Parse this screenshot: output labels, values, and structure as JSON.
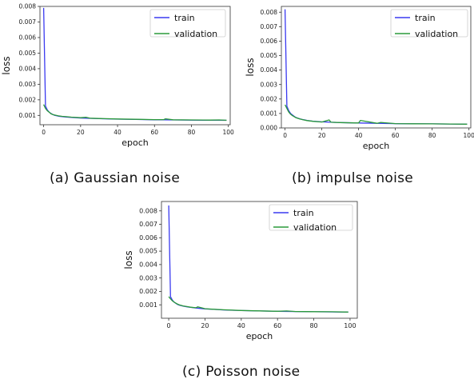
{
  "chart_data": [
    {
      "type": "line",
      "caption": "(a) Gaussian noise",
      "xlabel": "epoch",
      "ylabel": "loss",
      "xlim": [
        -2,
        101
      ],
      "ylim": [
        0.0004,
        0.008
      ],
      "xticks": [
        0,
        20,
        40,
        60,
        80,
        100
      ],
      "yticks": [
        0.001,
        0.002,
        0.003,
        0.004,
        0.005,
        0.006,
        0.007,
        0.008
      ],
      "ytick_labels": [
        "0.001",
        "0.002",
        "0.003",
        "0.004",
        "0.005",
        "0.006",
        "0.007",
        "0.008"
      ],
      "legend": "top-right",
      "grid": false,
      "series": [
        {
          "name": "train",
          "color": "#3a3af0",
          "x": [
            0,
            1,
            2,
            3,
            4,
            5,
            6,
            8,
            10,
            12,
            15,
            20,
            25,
            30,
            40,
            50,
            60,
            65,
            70,
            80,
            90,
            95,
            99
          ],
          "y": [
            0.0079,
            0.0016,
            0.00135,
            0.0012,
            0.00112,
            0.00105,
            0.001,
            0.00095,
            0.00092,
            0.0009,
            0.00087,
            0.00083,
            0.00081,
            0.00079,
            0.00076,
            0.00074,
            0.00072,
            0.00072,
            0.00071,
            0.0007,
            0.00069,
            0.00069,
            0.00068
          ]
        },
        {
          "name": "validation",
          "color": "#2a9a3a",
          "x": [
            0,
            1,
            2,
            3,
            4,
            5,
            6,
            8,
            10,
            12,
            15,
            20,
            23,
            25,
            30,
            40,
            50,
            60,
            65,
            66,
            70,
            80,
            90,
            95,
            99
          ],
          "y": [
            0.0017,
            0.00145,
            0.0013,
            0.0012,
            0.0011,
            0.00105,
            0.00102,
            0.00097,
            0.00094,
            0.00092,
            0.00089,
            0.00085,
            0.00088,
            0.00082,
            0.0008,
            0.00077,
            0.00075,
            0.00073,
            0.00073,
            0.00078,
            0.00072,
            0.00071,
            0.0007,
            0.00071,
            0.00069
          ]
        }
      ]
    },
    {
      "type": "line",
      "caption": "(b) impulse noise",
      "xlabel": "epoch",
      "ylabel": "loss",
      "xlim": [
        -2,
        101
      ],
      "ylim": [
        0.0,
        0.0084
      ],
      "xticks": [
        0,
        20,
        40,
        60,
        80,
        100
      ],
      "yticks": [
        0.0,
        0.001,
        0.002,
        0.003,
        0.004,
        0.005,
        0.006,
        0.007,
        0.008
      ],
      "ytick_labels": [
        "0.000",
        "0.001",
        "0.002",
        "0.003",
        "0.004",
        "0.005",
        "0.006",
        "0.007",
        "0.008"
      ],
      "legend": "top-right",
      "grid": false,
      "series": [
        {
          "name": "train",
          "color": "#3a3af0",
          "x": [
            0,
            1,
            2,
            3,
            4,
            5,
            6,
            8,
            10,
            12,
            15,
            20,
            25,
            30,
            40,
            50,
            60,
            70,
            80,
            90,
            99
          ],
          "y": [
            0.0082,
            0.0015,
            0.0012,
            0.001,
            0.0009,
            0.0008,
            0.00072,
            0.00063,
            0.00057,
            0.00052,
            0.00047,
            0.00042,
            0.00039,
            0.00037,
            0.00034,
            0.00032,
            0.0003,
            0.00029,
            0.00028,
            0.00027,
            0.00026
          ]
        },
        {
          "name": "validation",
          "color": "#2a9a3a",
          "x": [
            0,
            1,
            2,
            3,
            4,
            5,
            6,
            8,
            10,
            12,
            15,
            20,
            24,
            25,
            30,
            40,
            41,
            50,
            52,
            60,
            70,
            80,
            90,
            99
          ],
          "y": [
            0.0016,
            0.00135,
            0.0011,
            0.00095,
            0.00085,
            0.00078,
            0.0007,
            0.00062,
            0.00056,
            0.00051,
            0.00046,
            0.00041,
            0.00055,
            0.00039,
            0.00037,
            0.00034,
            0.00052,
            0.00032,
            0.00038,
            0.0003,
            0.00029,
            0.00028,
            0.00027,
            0.00026
          ]
        }
      ]
    },
    {
      "type": "line",
      "caption": "(c) Poisson noise",
      "xlabel": "epoch",
      "ylabel": "loss",
      "xlim": [
        -4,
        104
      ],
      "ylim": [
        0.0,
        0.0087
      ],
      "xticks": [
        0,
        20,
        40,
        60,
        80,
        100
      ],
      "yticks": [
        0.001,
        0.002,
        0.003,
        0.004,
        0.005,
        0.006,
        0.007,
        0.008
      ],
      "ytick_labels": [
        "0.001",
        "0.002",
        "0.003",
        "0.004",
        "0.005",
        "0.006",
        "0.007",
        "0.008"
      ],
      "legend": "top-right",
      "grid": false,
      "series": [
        {
          "name": "train",
          "color": "#3a3af0",
          "x": [
            0,
            1,
            2,
            3,
            4,
            5,
            6,
            8,
            10,
            12,
            15,
            20,
            25,
            30,
            40,
            50,
            60,
            70,
            80,
            90,
            99
          ],
          "y": [
            0.0084,
            0.0016,
            0.00135,
            0.0012,
            0.0011,
            0.00102,
            0.00097,
            0.0009,
            0.00085,
            0.00081,
            0.00076,
            0.0007,
            0.00066,
            0.00062,
            0.00057,
            0.00054,
            0.00052,
            0.0005,
            0.00048,
            0.00047,
            0.00046
          ]
        },
        {
          "name": "validation",
          "color": "#2a9a3a",
          "x": [
            0,
            1,
            2,
            3,
            4,
            5,
            6,
            8,
            10,
            12,
            15,
            16,
            20,
            25,
            30,
            40,
            50,
            60,
            65,
            70,
            80,
            90,
            99
          ],
          "y": [
            0.0016,
            0.00145,
            0.0013,
            0.0012,
            0.00112,
            0.00104,
            0.00099,
            0.00092,
            0.00087,
            0.00082,
            0.00078,
            0.00085,
            0.00071,
            0.00067,
            0.00063,
            0.00058,
            0.00055,
            0.00052,
            0.00054,
            0.0005,
            0.00049,
            0.00048,
            0.00046
          ]
        }
      ]
    }
  ]
}
